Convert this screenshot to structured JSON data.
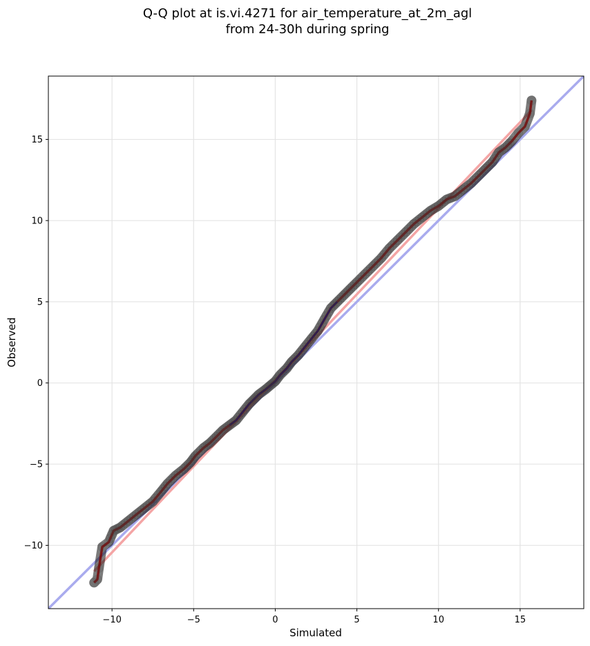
{
  "chart_data": {
    "type": "scatter",
    "title_line1": "Q-Q plot at is.vi.4271 for air_temperature_at_2m_agl",
    "title_line2": "from 24-30h during spring",
    "xlabel": "Simulated",
    "ylabel": "Observed",
    "xlim": [
      -13.9,
      18.9
    ],
    "ylim": [
      -13.9,
      18.9
    ],
    "xticks": [
      -10,
      -5,
      0,
      5,
      10,
      15
    ],
    "yticks": [
      -10,
      -5,
      0,
      5,
      10,
      15
    ],
    "xtick_labels": [
      "−10",
      "−5",
      "0",
      "5",
      "10",
      "15"
    ],
    "ytick_labels": [
      "−10",
      "−5",
      "0",
      "5",
      "10",
      "15"
    ],
    "grid": true,
    "colors": {
      "points": "#3a3a3a",
      "identity_line": "#a9abee",
      "fit_line": "#f4a5a5",
      "inner_line_red": "#7a0000",
      "inner_line_blue": "#000080",
      "grid": "#e4e4e4"
    },
    "identity_line": {
      "x": [
        -13.9,
        18.9
      ],
      "y": [
        -13.9,
        18.9
      ]
    },
    "fit_line": {
      "x": [
        -11.1,
        15.7
      ],
      "y": [
        -11.6,
        16.8
      ]
    },
    "quantiles": {
      "x": [
        -11.1,
        -10.9,
        -10.8,
        -10.6,
        -10.2,
        -9.9,
        -9.5,
        -9.0,
        -8.5,
        -8.0,
        -7.5,
        -7.0,
        -6.6,
        -6.1,
        -5.6,
        -5.2,
        -4.9,
        -4.4,
        -4.0,
        -3.6,
        -3.2,
        -2.8,
        -2.4,
        -2.0,
        -1.6,
        -1.3,
        -1.0,
        -0.6,
        -0.3,
        0.0,
        0.3,
        0.7,
        1.0,
        1.4,
        1.8,
        2.2,
        2.6,
        3.0,
        3.4,
        3.8,
        4.2,
        4.6,
        5.0,
        5.5,
        6.0,
        6.5,
        7.0,
        7.5,
        8.0,
        8.5,
        9.0,
        9.5,
        10.0,
        10.5,
        11.0,
        11.5,
        12.0,
        12.5,
        12.9,
        13.3,
        13.7,
        14.1,
        14.5,
        14.9,
        15.3,
        15.6,
        15.7
      ],
      "y": [
        -12.3,
        -12.1,
        -11.4,
        -10.1,
        -9.8,
        -9.1,
        -8.9,
        -8.5,
        -8.1,
        -7.7,
        -7.3,
        -6.7,
        -6.2,
        -5.7,
        -5.3,
        -4.9,
        -4.5,
        -4.0,
        -3.7,
        -3.3,
        -2.9,
        -2.6,
        -2.3,
        -1.8,
        -1.3,
        -1.0,
        -0.7,
        -0.4,
        -0.15,
        0.1,
        0.5,
        0.9,
        1.3,
        1.7,
        2.2,
        2.7,
        3.2,
        3.9,
        4.6,
        5.0,
        5.4,
        5.8,
        6.2,
        6.7,
        7.2,
        7.7,
        8.3,
        8.8,
        9.3,
        9.8,
        10.2,
        10.6,
        10.9,
        11.3,
        11.5,
        11.9,
        12.3,
        12.8,
        13.2,
        13.6,
        14.2,
        14.5,
        14.9,
        15.4,
        15.8,
        16.6,
        17.4
      ]
    }
  }
}
